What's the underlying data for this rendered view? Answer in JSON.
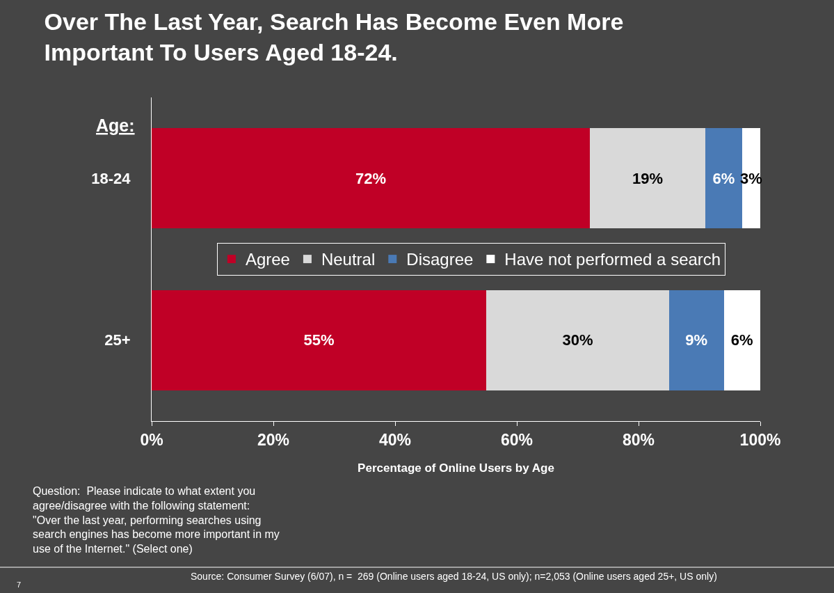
{
  "chart_data": {
    "type": "bar",
    "orientation": "horizontal",
    "stacked": true,
    "title": "Over The Last Year, Search Has Become Even More Important To Users Aged 18-24.",
    "ylabel": "Age:",
    "xlabel": "Percentage of Online Users by Age",
    "categories": [
      "18-24",
      "25+"
    ],
    "series": [
      {
        "name": "Agree",
        "color": "#c00026",
        "values": [
          72,
          55
        ],
        "value_labels": [
          "72%",
          "55%"
        ]
      },
      {
        "name": "Neutral",
        "color": "#d9d9d9",
        "values": [
          19,
          30
        ],
        "value_labels": [
          "19%",
          "30%"
        ]
      },
      {
        "name": "Disagree",
        "color": "#4a7ab5",
        "values": [
          6,
          9
        ],
        "value_labels": [
          "6%",
          "9%"
        ]
      },
      {
        "name": "Have not performed a search",
        "color": "#ffffff",
        "values": [
          3,
          6
        ],
        "value_labels": [
          "3%",
          "6%"
        ]
      }
    ],
    "xlim": [
      0,
      100
    ],
    "xticks": [
      {
        "value": 0,
        "label": "0%"
      },
      {
        "value": 20,
        "label": "20%"
      },
      {
        "value": 40,
        "label": "40%"
      },
      {
        "value": 60,
        "label": "60%"
      },
      {
        "value": 80,
        "label": "80%"
      },
      {
        "value": 100,
        "label": "100%"
      }
    ],
    "legend": "center",
    "annotations": [
      "Question:  Please indicate to what extent you agree/disagree with the following statement: \"Over the last year, performing searches using search engines has become more important in my use of the Internet.\" (Select one)",
      "7",
      "Source: Consumer Survey (6/07), n =  269 (Online users aged 18-24, US only); n=2,053 (Online users aged 25+, US only)"
    ]
  }
}
